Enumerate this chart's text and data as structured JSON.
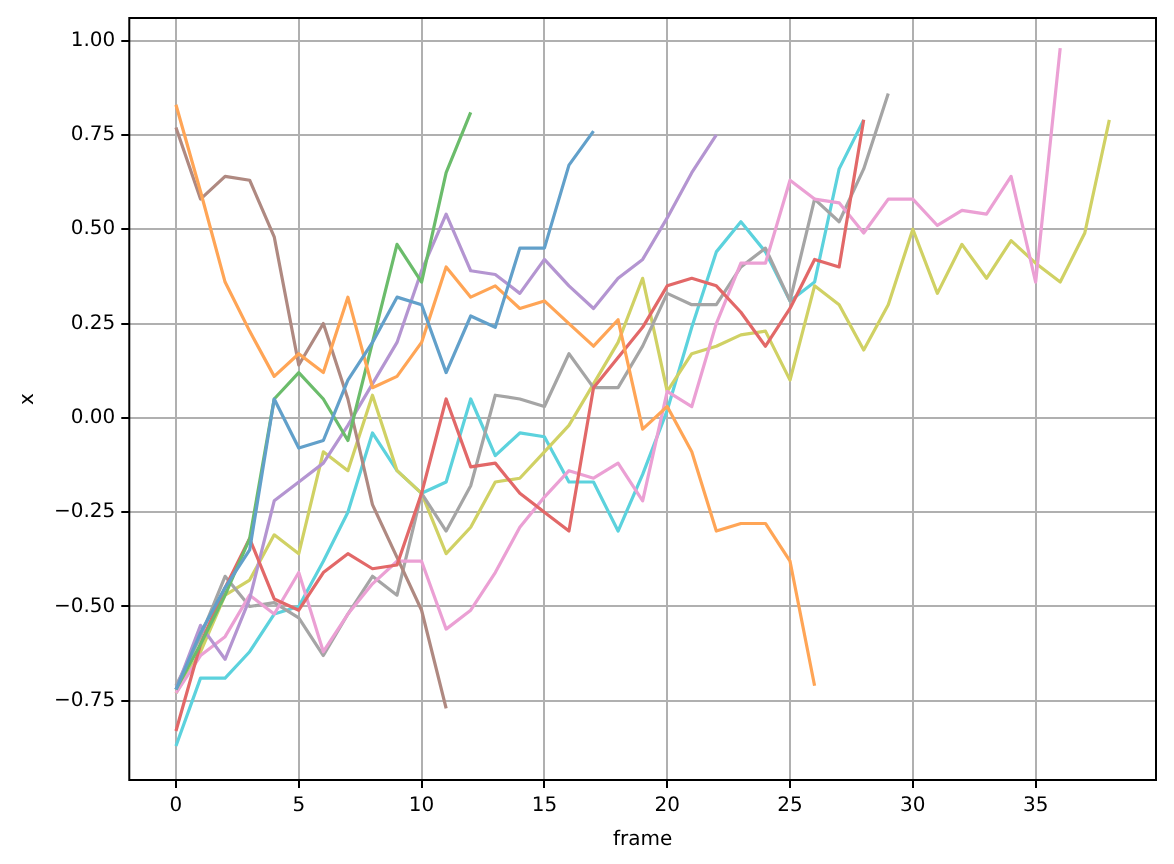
{
  "chart_data": {
    "type": "line",
    "xlabel": "frame",
    "ylabel": "x",
    "x": [
      0,
      1,
      2,
      3,
      4,
      5,
      6,
      7,
      8,
      9,
      10,
      11,
      12,
      13,
      14,
      15,
      16,
      17,
      18,
      19,
      20,
      21,
      22,
      23,
      24,
      25,
      26,
      27,
      28,
      29,
      30,
      31,
      32,
      33,
      34,
      35,
      36,
      37,
      38
    ],
    "xlim": [
      -1.9,
      39.9
    ],
    "xticks": [
      0,
      5,
      10,
      15,
      20,
      25,
      30,
      35
    ],
    "ylim": [
      -0.96,
      1.06
    ],
    "yticks": [
      {
        "value": -0.75,
        "label": "−0.75"
      },
      {
        "value": -0.5,
        "label": "−0.50"
      },
      {
        "value": -0.25,
        "label": "−0.25"
      },
      {
        "value": 0,
        "label": "0.00"
      },
      {
        "value": 0.25,
        "label": "0.25"
      },
      {
        "value": 0.5,
        "label": "0.50"
      },
      {
        "value": 0.75,
        "label": "0.75"
      },
      {
        "value": 1,
        "label": "1.00"
      }
    ],
    "grid": true,
    "legend": false,
    "marker": "none",
    "line_style": "solid",
    "series": [
      {
        "color": "#62a0ca",
        "values": [
          -0.72,
          -0.57,
          -0.45,
          -0.35,
          0.05,
          -0.08,
          -0.06,
          0.1,
          0.2,
          0.32,
          0.3,
          0.12,
          0.27,
          0.24,
          0.45,
          0.45,
          0.67,
          0.76,
          null,
          null,
          null,
          null,
          null,
          null,
          null,
          null,
          null,
          null,
          null,
          null,
          null,
          null,
          null,
          null,
          null,
          null,
          null,
          null,
          null
        ]
      },
      {
        "color": "#ffa556",
        "values": [
          0.83,
          0.6,
          0.36,
          0.23,
          0.11,
          0.17,
          0.12,
          0.32,
          0.08,
          0.11,
          0.2,
          0.4,
          0.32,
          0.35,
          0.29,
          0.31,
          0.25,
          0.19,
          0.26,
          -0.03,
          0.03,
          -0.09,
          -0.3,
          -0.28,
          -0.28,
          -0.38,
          -0.71,
          null,
          null,
          null,
          null,
          null,
          null,
          null,
          null,
          null,
          null,
          null,
          null
        ]
      },
      {
        "color": "#6bbc6b",
        "values": [
          -0.72,
          -0.6,
          -0.47,
          -0.32,
          0.05,
          0.12,
          0.05,
          -0.06,
          0.2,
          0.46,
          0.36,
          0.65,
          0.81,
          null,
          null,
          null,
          null,
          null,
          null,
          null,
          null,
          null,
          null,
          null,
          null,
          null,
          null,
          null,
          null,
          null,
          null,
          null,
          null,
          null,
          null,
          null,
          null,
          null,
          null
        ]
      },
      {
        "color": "#e26868",
        "values": [
          -0.83,
          -0.6,
          -0.45,
          -0.32,
          -0.48,
          -0.51,
          -0.41,
          -0.36,
          -0.4,
          -0.39,
          -0.2,
          0.05,
          -0.13,
          -0.12,
          -0.2,
          -0.25,
          -0.3,
          0.08,
          0.16,
          0.24,
          0.35,
          0.37,
          0.35,
          0.28,
          0.19,
          0.29,
          0.42,
          0.4,
          0.79,
          null,
          null,
          null,
          null,
          null,
          null,
          null,
          null,
          null,
          null
        ]
      },
      {
        "color": "#b495d1",
        "values": [
          -0.72,
          -0.55,
          -0.64,
          -0.48,
          -0.22,
          -0.17,
          -0.12,
          -0.02,
          0.09,
          0.2,
          0.39,
          0.54,
          0.39,
          0.38,
          0.33,
          0.42,
          0.35,
          0.29,
          0.37,
          0.42,
          0.53,
          0.65,
          0.75,
          null,
          null,
          null,
          null,
          null,
          null,
          null,
          null,
          null,
          null,
          null,
          null,
          null,
          null,
          null,
          null
        ]
      },
      {
        "color": "#af8981",
        "values": [
          0.77,
          0.58,
          0.64,
          0.63,
          0.48,
          0.14,
          0.25,
          0.05,
          -0.23,
          -0.37,
          -0.51,
          -0.77,
          null,
          null,
          null,
          null,
          null,
          null,
          null,
          null,
          null,
          null,
          null,
          null,
          null,
          null,
          null,
          null,
          null,
          null,
          null,
          null,
          null,
          null,
          null,
          null,
          null,
          null,
          null
        ]
      },
      {
        "color": "#eba0d4",
        "values": [
          -0.73,
          -0.63,
          -0.58,
          -0.47,
          -0.52,
          -0.41,
          -0.62,
          -0.52,
          -0.44,
          -0.38,
          -0.38,
          -0.56,
          -0.51,
          -0.41,
          -0.29,
          -0.21,
          -0.14,
          -0.16,
          -0.12,
          -0.22,
          0.07,
          0.03,
          0.25,
          0.41,
          0.41,
          0.63,
          0.58,
          0.57,
          0.49,
          0.58,
          0.58,
          0.51,
          0.55,
          0.54,
          0.64,
          0.36,
          0.98,
          null,
          null
        ]
      },
      {
        "color": "#a5a5a5",
        "values": [
          -0.71,
          -0.58,
          -0.42,
          -0.5,
          -0.49,
          -0.53,
          -0.63,
          -0.52,
          -0.42,
          -0.47,
          -0.2,
          -0.3,
          -0.18,
          0.06,
          0.05,
          0.03,
          0.17,
          0.08,
          0.08,
          0.19,
          0.33,
          0.3,
          0.3,
          0.4,
          0.45,
          0.31,
          0.58,
          0.52,
          0.66,
          0.86,
          null,
          null,
          null,
          null,
          null,
          null,
          null,
          null,
          null
        ]
      },
      {
        "color": "#d0d164",
        "values": [
          -0.73,
          -0.62,
          -0.47,
          -0.43,
          -0.31,
          -0.36,
          -0.09,
          -0.14,
          0.06,
          -0.14,
          -0.2,
          -0.36,
          -0.29,
          -0.17,
          -0.16,
          -0.09,
          -0.02,
          0.09,
          0.2,
          0.37,
          0.07,
          0.17,
          0.19,
          0.22,
          0.23,
          0.1,
          0.35,
          0.3,
          0.18,
          0.3,
          0.5,
          0.33,
          0.46,
          0.37,
          0.47,
          0.41,
          0.36,
          0.49,
          0.79
        ]
      },
      {
        "color": "#5cd2dd",
        "values": [
          -0.87,
          -0.69,
          -0.69,
          -0.62,
          -0.52,
          -0.5,
          -0.38,
          -0.25,
          -0.04,
          -0.14,
          -0.2,
          -0.17,
          0.05,
          -0.1,
          -0.04,
          -0.05,
          -0.17,
          -0.17,
          -0.3,
          -0.15,
          0.02,
          0.24,
          0.44,
          0.52,
          0.44,
          0.31,
          0.36,
          0.66,
          0.79,
          null,
          null,
          null,
          null,
          null,
          null,
          null,
          null,
          null,
          null
        ]
      }
    ]
  }
}
